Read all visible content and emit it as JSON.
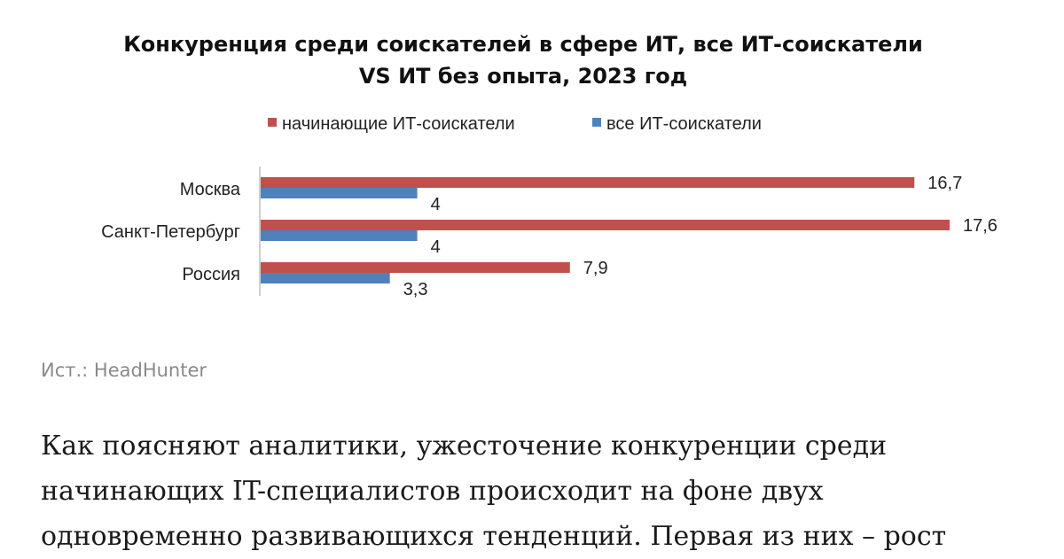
{
  "chart_data": {
    "type": "bar",
    "orientation": "horizontal",
    "title_lines": [
      "Конкуренция среди соискателей в сфере ИТ, все ИТ-соискатели",
      "VS ИТ без опыта, 2023 год"
    ],
    "categories": [
      "Москва",
      "Санкт-Петербург",
      "Россия"
    ],
    "series": [
      {
        "name": "начинающие ИТ-соискатели",
        "values": [
          16.7,
          17.6,
          7.9
        ],
        "labels": [
          "16,7",
          "17,6",
          "7,9"
        ],
        "color": "#c0504d"
      },
      {
        "name": "все ИТ-соискатели",
        "values": [
          4,
          4,
          3.3
        ],
        "labels": [
          "4",
          "4",
          "3,3"
        ],
        "color": "#4f81bd"
      }
    ],
    "xlim": [
      0,
      17.6
    ],
    "grid": false,
    "legend_position": "top"
  },
  "source": "Ист.: HeadHunter",
  "article_lines": [
    "Как поясняют аналитики, ужесточение конкуренции среди",
    "начинающих IT-специалистов происходит на фоне двух",
    "одновременно развивающихся тенденций. Первая из них – рост"
  ]
}
